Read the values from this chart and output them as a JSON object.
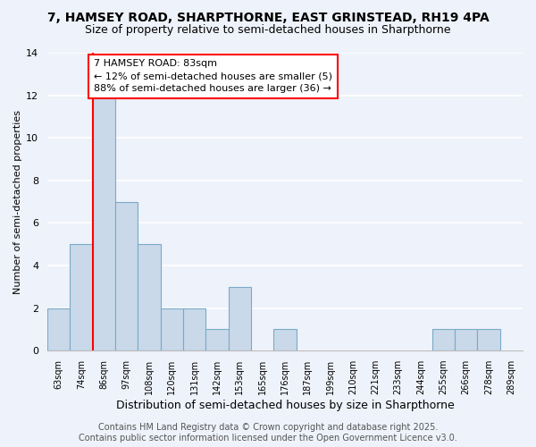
{
  "title1": "7, HAMSEY ROAD, SHARPTHORNE, EAST GRINSTEAD, RH19 4PA",
  "title2": "Size of property relative to semi-detached houses in Sharpthorne",
  "xlabel": "Distribution of semi-detached houses by size in Sharpthorne",
  "ylabel": "Number of semi-detached properties",
  "bins": [
    "63sqm",
    "74sqm",
    "86sqm",
    "97sqm",
    "108sqm",
    "120sqm",
    "131sqm",
    "142sqm",
    "153sqm",
    "165sqm",
    "176sqm",
    "187sqm",
    "199sqm",
    "210sqm",
    "221sqm",
    "233sqm",
    "244sqm",
    "255sqm",
    "266sqm",
    "278sqm",
    "289sqm"
  ],
  "values": [
    2,
    5,
    12,
    7,
    5,
    2,
    2,
    1,
    3,
    0,
    1,
    0,
    0,
    0,
    0,
    0,
    0,
    1,
    1,
    1,
    0
  ],
  "bar_color": "#c9d9ea",
  "bar_edge_color": "#7aaac8",
  "red_line_bin": 2,
  "annotation_text": "7 HAMSEY ROAD: 83sqm\n← 12% of semi-detached houses are smaller (5)\n88% of semi-detached houses are larger (36) →",
  "footer1": "Contains HM Land Registry data © Crown copyright and database right 2025.",
  "footer2": "Contains public sector information licensed under the Open Government Licence v3.0.",
  "ylim": [
    0,
    14
  ],
  "yticks": [
    0,
    2,
    4,
    6,
    8,
    10,
    12,
    14
  ],
  "background_color": "#eef2fa",
  "title1_fontsize": 10,
  "title2_fontsize": 9,
  "axis_fontsize": 8,
  "tick_fontsize": 7,
  "annotation_fontsize": 8,
  "footer_fontsize": 7
}
